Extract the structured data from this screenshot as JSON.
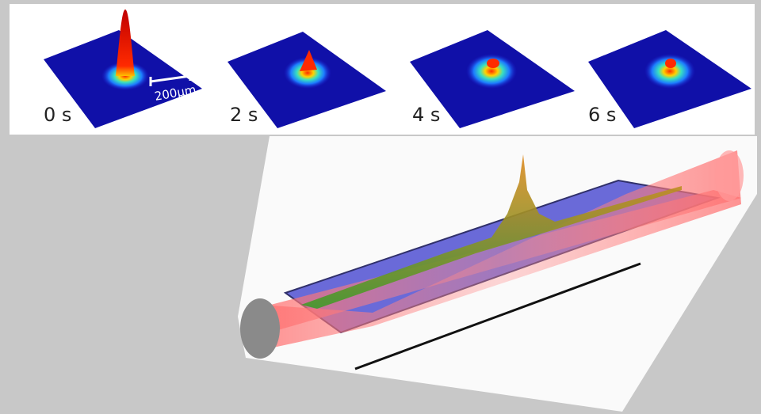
{
  "panels": [
    {
      "label": "0 s"
    },
    {
      "label": "2 s"
    },
    {
      "label": "4 s"
    },
    {
      "label": "6 s"
    }
  ],
  "scale_bar": {
    "label": "200µm"
  }
}
